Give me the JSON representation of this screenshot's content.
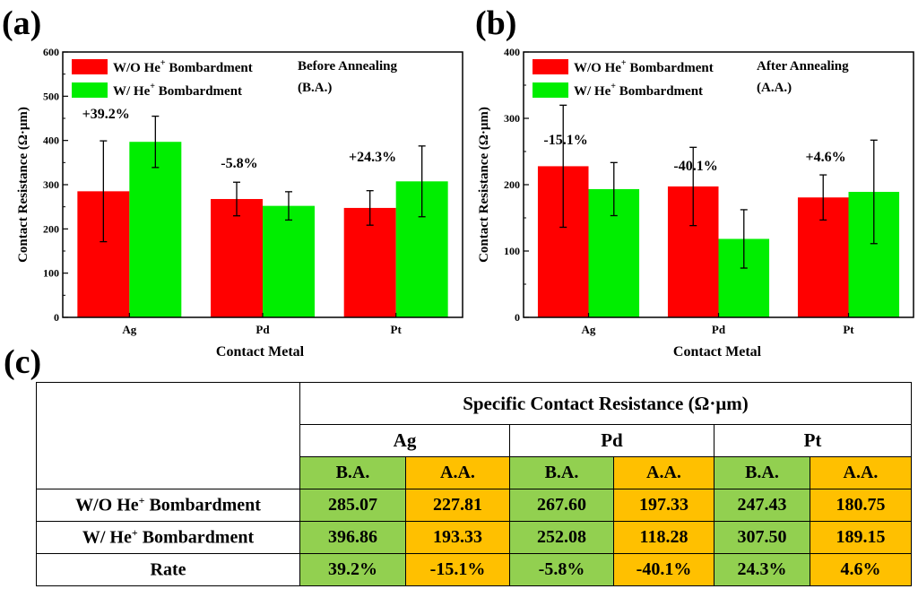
{
  "panels": [
    {
      "panel_label": "(a)",
      "chart_data": {
        "type": "bar",
        "categories": [
          "Ag",
          "Pd",
          "Pt"
        ],
        "series": [
          {
            "name": "W/O He⁺ Bombardment",
            "color": "#ff0000",
            "values": [
              285.07,
              267.6,
              247.43
            ],
            "errors": [
              114,
              38,
              39
            ]
          },
          {
            "name": "W/ He⁺ Bombardment",
            "color": "#00ee00",
            "values": [
              396.86,
              252.08,
              307.5
            ],
            "errors": [
              58,
              32,
              80
            ]
          }
        ],
        "annotations": [
          "+39.2%",
          "-5.8%",
          "+24.3%"
        ],
        "condition": "Before Annealing",
        "condition_abbr": "(B.A.)",
        "xlabel": "Contact Metal",
        "ylabel": "Contact Resistance (Ω·μm)",
        "ylim": [
          0,
          600
        ],
        "yticks": [
          "0",
          "100",
          "200",
          "300",
          "400",
          "500",
          "600"
        ]
      }
    },
    {
      "panel_label": "(b)",
      "chart_data": {
        "type": "bar",
        "categories": [
          "Ag",
          "Pd",
          "Pt"
        ],
        "series": [
          {
            "name": "W/O He⁺ Bombardment",
            "color": "#ff0000",
            "values": [
              227.81,
              197.33,
              180.75
            ],
            "errors": [
              92,
              59,
              34
            ]
          },
          {
            "name": "W/ He⁺ Bombardment",
            "color": "#00ee00",
            "values": [
              193.33,
              118.28,
              189.15
            ],
            "errors": [
              40,
              44,
              78
            ]
          }
        ],
        "annotations": [
          "-15.1%",
          "-40.1%",
          "+4.6%"
        ],
        "condition": "After Annealing",
        "condition_abbr": "(A.A.)",
        "xlabel": "Contact Metal",
        "ylabel": "Contact Resistance (Ω·μm)",
        "ylim": [
          0,
          400
        ],
        "yticks": [
          "0",
          "100",
          "200",
          "300",
          "400"
        ]
      }
    }
  ],
  "table": {
    "panel_label": "(c)",
    "title": "Specific Contact Resistance (Ω·μm)",
    "metals": [
      "Ag",
      "Pd",
      "Pt"
    ],
    "conditions": [
      "B.A.",
      "A.A.",
      "B.A.",
      "A.A.",
      "B.A.",
      "A.A."
    ],
    "rows": [
      {
        "label_pre": "W/O He",
        "label_sup": "+",
        "label_post": " Bombardment",
        "cells": [
          "285.07",
          "227.81",
          "267.60",
          "197.33",
          "247.43",
          "180.75"
        ]
      },
      {
        "label_pre": "W/ He",
        "label_sup": "+",
        "label_post": " Bombardment",
        "cells": [
          "396.86",
          "193.33",
          "252.08",
          "118.28",
          "307.50",
          "189.15"
        ]
      },
      {
        "label_pre": "Rate",
        "label_sup": "",
        "label_post": "",
        "cells": [
          "39.2%",
          "-15.1%",
          "-5.8%",
          "-40.1%",
          "24.3%",
          "4.6%"
        ]
      }
    ]
  }
}
